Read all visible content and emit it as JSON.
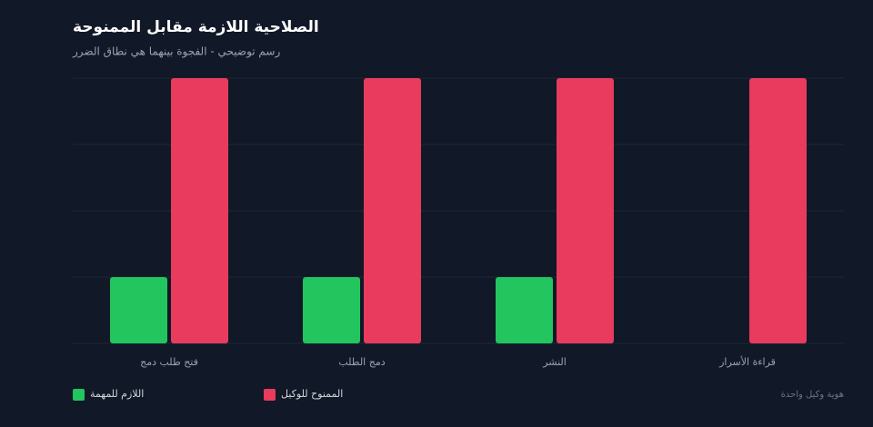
{
  "chart_data": {
    "type": "bar",
    "title": "الصلاحية اللازمة مقابل الممنوحة",
    "subtitle": "رسم توضيحي - الفجوة بينهما هي نطاق الضرر",
    "categories": [
      "فتح طلب دمج",
      "دمج الطلب",
      "النشر",
      "قراءة الأسرار"
    ],
    "series": [
      {
        "name": "اللازم للمهمة",
        "color": "#22c55e",
        "values": [
          1,
          1,
          1,
          0
        ]
      },
      {
        "name": "الممنوح للوكيل",
        "color": "#e93b5d",
        "values": [
          4,
          4,
          4,
          4
        ]
      }
    ],
    "ylim": [
      0,
      4
    ],
    "yticks": [
      0,
      1,
      2,
      3,
      4
    ],
    "grid": true,
    "note": "هوية وكيل واحدة"
  }
}
